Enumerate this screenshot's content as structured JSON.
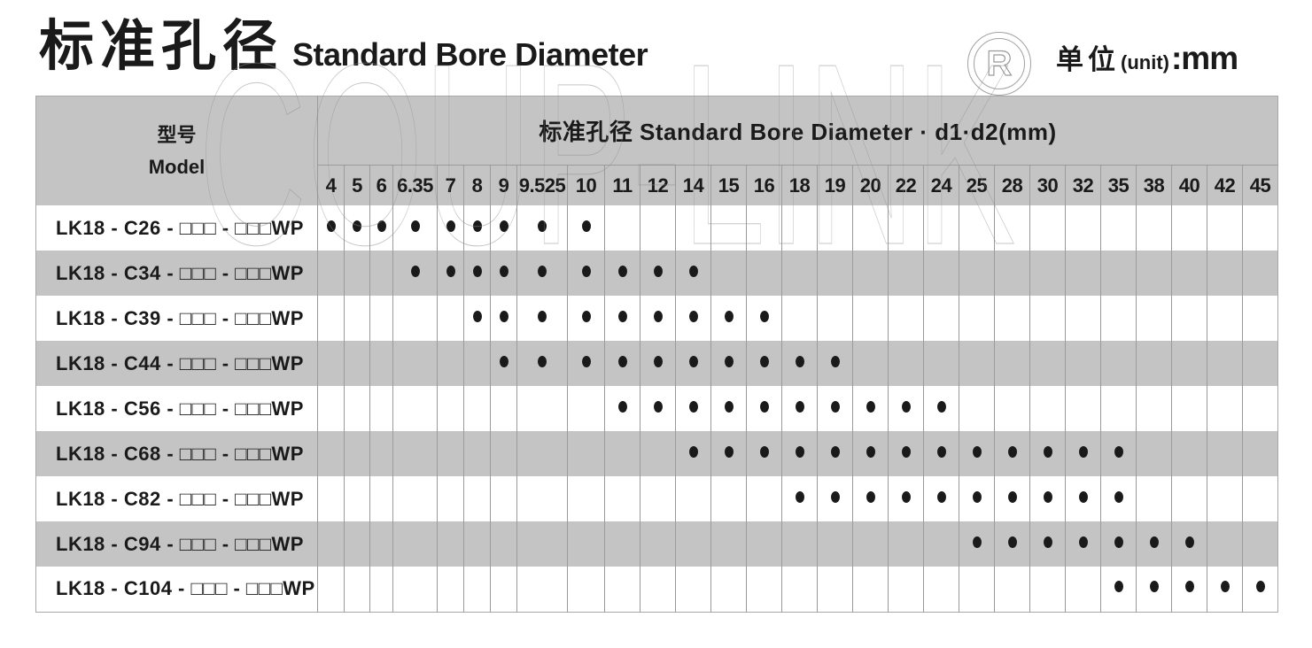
{
  "header": {
    "title_zh": "标准孔径",
    "title_en": "Standard Bore Diameter",
    "unit_label_zh": "单位",
    "unit_label_en": "(unit)",
    "unit_value": ":mm",
    "registered_mark": "R"
  },
  "watermark": "COUP-LINK",
  "table": {
    "model_header_zh": "型号",
    "model_header_en": "Model",
    "bore_header": "标准孔径 Standard Bore Diameter · d1·d2(mm)",
    "columns": [
      "4",
      "5",
      "6",
      "6.35",
      "7",
      "8",
      "9",
      "9.525",
      "10",
      "11",
      "12",
      "14",
      "15",
      "16",
      "18",
      "19",
      "20",
      "22",
      "24",
      "25",
      "28",
      "30",
      "32",
      "35",
      "38",
      "40",
      "42",
      "45"
    ],
    "rows": [
      {
        "model": "LK18 - C26 - □□□ - □□□WP",
        "bores": [
          "4",
          "5",
          "6",
          "6.35",
          "7",
          "8",
          "9",
          "9.525",
          "10"
        ]
      },
      {
        "model": "LK18 - C34 - □□□ - □□□WP",
        "bores": [
          "6.35",
          "7",
          "8",
          "9",
          "9.525",
          "10",
          "11",
          "12",
          "14"
        ]
      },
      {
        "model": "LK18 - C39 - □□□ - □□□WP",
        "bores": [
          "8",
          "9",
          "9.525",
          "10",
          "11",
          "12",
          "14",
          "15",
          "16"
        ]
      },
      {
        "model": "LK18 - C44 - □□□ - □□□WP",
        "bores": [
          "9",
          "9.525",
          "10",
          "11",
          "12",
          "14",
          "15",
          "16",
          "18",
          "19"
        ]
      },
      {
        "model": "LK18 - C56 - □□□ - □□□WP",
        "bores": [
          "11",
          "12",
          "14",
          "15",
          "16",
          "18",
          "19",
          "20",
          "22",
          "24"
        ]
      },
      {
        "model": "LK18 - C68 - □□□ - □□□WP",
        "bores": [
          "14",
          "15",
          "16",
          "18",
          "19",
          "20",
          "22",
          "24",
          "25",
          "28",
          "30",
          "32",
          "35"
        ]
      },
      {
        "model": "LK18 - C82 - □□□ - □□□WP",
        "bores": [
          "18",
          "19",
          "20",
          "22",
          "24",
          "25",
          "28",
          "30",
          "32",
          "35"
        ]
      },
      {
        "model": "LK18 - C94 - □□□ - □□□WP",
        "bores": [
          "25",
          "28",
          "30",
          "32",
          "35",
          "38",
          "40"
        ]
      },
      {
        "model": "LK18 - C104 - □□□ - □□□WP",
        "bores": [
          "35",
          "38",
          "40",
          "42",
          "45"
        ]
      }
    ]
  },
  "colors": {
    "header_gray": "#c5c4c4",
    "grid_line": "#9b9b9b",
    "text": "#1a1a1a",
    "watermark_gray": "#8c8c8c"
  }
}
